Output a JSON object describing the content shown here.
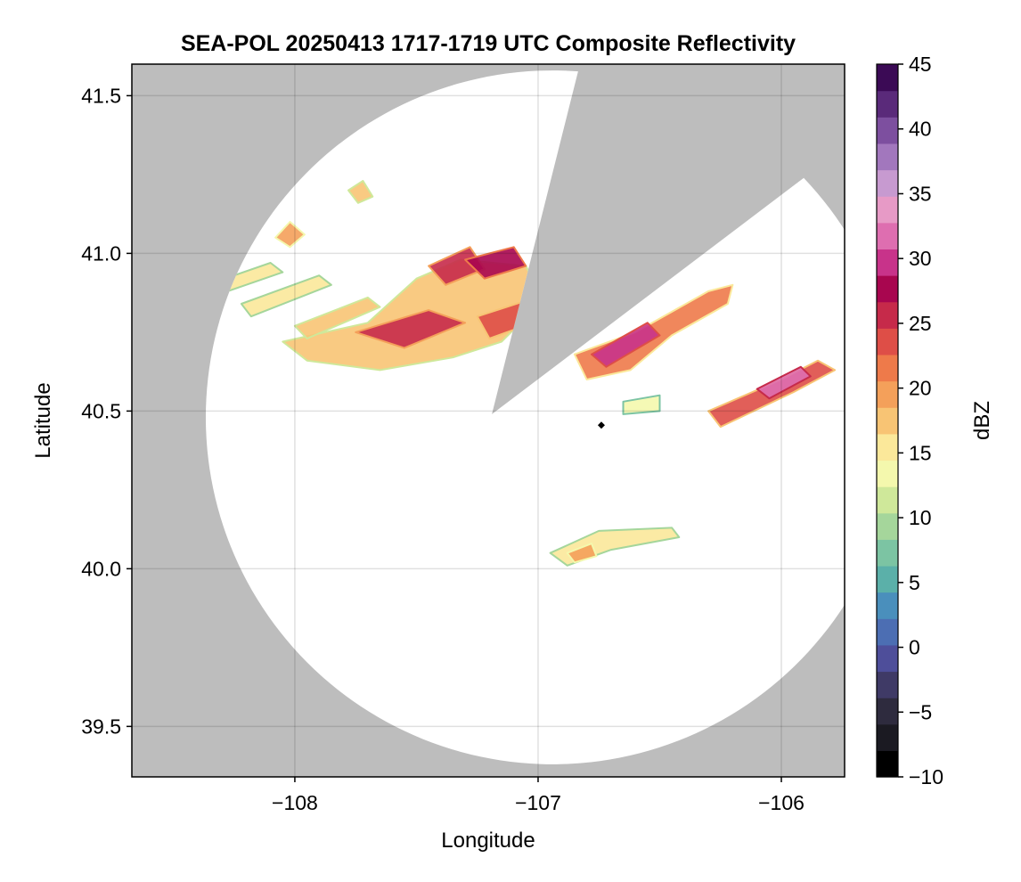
{
  "chart_data": {
    "type": "heatmap",
    "title": "SEA-POL 20250413 1717-1719 UTC Composite Reflectivity",
    "xlabel": "Longitude",
    "ylabel": "Latitude",
    "xlim": [
      -108.67,
      -105.74
    ],
    "ylim": [
      39.34,
      41.6
    ],
    "xticks": [
      -108,
      -107,
      -106
    ],
    "xtick_labels": [
      "−108",
      "−107",
      "−106"
    ],
    "yticks": [
      39.5,
      40.0,
      40.5,
      41.0,
      41.5
    ],
    "ytick_labels": [
      "39.5",
      "40.0",
      "40.5",
      "41.0",
      "41.5"
    ],
    "grid": true,
    "background_color": "#bdbdbd",
    "radar": {
      "site": {
        "lon": -106.74,
        "lat": 40.455
      },
      "coverage_center": {
        "lon": -106.94,
        "lat": 40.48
      },
      "coverage_radius_deg_lat": 1.1,
      "blocked_sectors": [
        {
          "apex": [
            -107.19,
            40.49
          ],
          "edge_points": [
            [
              -106.84,
              41.53
            ],
            [
              -107.19,
              40.49
            ]
          ],
          "from": [
            -106.84,
            41.53
          ],
          "to": [
            -106.07,
            41.12
          ]
        }
      ]
    },
    "colorbar": {
      "label": "dBZ",
      "min": -10,
      "max": 45,
      "ticks": [
        -10,
        -5,
        0,
        5,
        10,
        15,
        20,
        25,
        30,
        35,
        40,
        45
      ],
      "tick_labels": [
        "−10",
        "−5",
        "0",
        "5",
        "10",
        "15",
        "20",
        "25",
        "30",
        "35",
        "40",
        "45"
      ],
      "colormap": "Spectral_r + purples",
      "colors": [
        "#000000",
        "#1b1a22",
        "#2e2b3e",
        "#3f3a66",
        "#4e4e9a",
        "#4c6eb3",
        "#4a8fbc",
        "#5bb0a9",
        "#7cc4a3",
        "#a5d69b",
        "#cfe89a",
        "#f4f8ad",
        "#fbe89a",
        "#f8c474",
        "#f4a05a",
        "#ee7a4a",
        "#de4e47",
        "#c62a4a",
        "#a8064f",
        "#c8338a",
        "#de6eb0",
        "#e79ac6",
        "#c79ad0",
        "#a277bd",
        "#7d4f9f",
        "#5a2a7a",
        "#3b0a55"
      ]
    },
    "echo_regions": [
      {
        "name": "northwest-band-main",
        "points": [
          [
            -108.05,
            40.72
          ],
          [
            -107.7,
            40.78
          ],
          [
            -107.5,
            40.92
          ],
          [
            -107.32,
            40.98
          ],
          [
            -107.05,
            40.96
          ],
          [
            -106.98,
            40.85
          ],
          [
            -107.15,
            40.72
          ],
          [
            -107.35,
            40.67
          ],
          [
            -107.65,
            40.63
          ],
          [
            -107.95,
            40.66
          ]
        ],
        "dbz": 18
      },
      {
        "name": "northwest-core-1",
        "points": [
          [
            -107.75,
            40.75
          ],
          [
            -107.45,
            40.82
          ],
          [
            -107.3,
            40.78
          ],
          [
            -107.55,
            40.7
          ]
        ],
        "dbz": 26
      },
      {
        "name": "northwest-core-2",
        "points": [
          [
            -107.25,
            40.8
          ],
          [
            -107.05,
            40.85
          ],
          [
            -107.02,
            40.78
          ],
          [
            -107.2,
            40.73
          ]
        ],
        "dbz": 24
      },
      {
        "name": "northwest-core-3",
        "points": [
          [
            -107.45,
            40.96
          ],
          [
            -107.28,
            41.02
          ],
          [
            -107.22,
            40.95
          ],
          [
            -107.38,
            40.9
          ]
        ],
        "dbz": 25
      },
      {
        "name": "northwest-core-4",
        "points": [
          [
            -107.3,
            40.98
          ],
          [
            -107.1,
            41.02
          ],
          [
            -107.05,
            40.96
          ],
          [
            -107.22,
            40.92
          ]
        ],
        "dbz": 27
      },
      {
        "name": "west-streak-1",
        "points": [
          [
            -108.4,
            40.89
          ],
          [
            -108.1,
            40.97
          ],
          [
            -108.05,
            40.94
          ],
          [
            -108.35,
            40.86
          ]
        ],
        "dbz": 16
      },
      {
        "name": "west-streak-2",
        "points": [
          [
            -108.22,
            40.84
          ],
          [
            -107.9,
            40.93
          ],
          [
            -107.85,
            40.9
          ],
          [
            -108.18,
            40.8
          ]
        ],
        "dbz": 15
      },
      {
        "name": "west-streak-3",
        "points": [
          [
            -108.0,
            40.77
          ],
          [
            -107.7,
            40.86
          ],
          [
            -107.65,
            40.83
          ],
          [
            -107.95,
            40.73
          ]
        ],
        "dbz": 17
      },
      {
        "name": "northwest-cells",
        "points": [
          [
            -108.08,
            41.05
          ],
          [
            -108.02,
            41.1
          ],
          [
            -107.96,
            41.06
          ],
          [
            -108.02,
            41.02
          ]
        ],
        "dbz": 19
      },
      {
        "name": "northwest-cells-2",
        "points": [
          [
            -107.78,
            41.2
          ],
          [
            -107.72,
            41.23
          ],
          [
            -107.68,
            41.18
          ],
          [
            -107.74,
            41.16
          ]
        ],
        "dbz": 17
      },
      {
        "name": "east-band-north",
        "points": [
          [
            -106.85,
            40.68
          ],
          [
            -106.6,
            40.75
          ],
          [
            -106.3,
            40.88
          ],
          [
            -106.2,
            40.9
          ],
          [
            -106.22,
            40.84
          ],
          [
            -106.45,
            40.74
          ],
          [
            -106.62,
            40.63
          ],
          [
            -106.8,
            40.6
          ]
        ],
        "dbz": 22
      },
      {
        "name": "east-band-north-core",
        "points": [
          [
            -106.78,
            40.68
          ],
          [
            -106.55,
            40.78
          ],
          [
            -106.5,
            40.74
          ],
          [
            -106.72,
            40.64
          ]
        ],
        "dbz": 30
      },
      {
        "name": "east-streak-south",
        "points": [
          [
            -106.3,
            40.5
          ],
          [
            -106.0,
            40.6
          ],
          [
            -105.85,
            40.66
          ],
          [
            -105.78,
            40.63
          ],
          [
            -105.95,
            40.56
          ],
          [
            -106.25,
            40.45
          ]
        ],
        "dbz": 24
      },
      {
        "name": "east-streak-south-core",
        "points": [
          [
            -106.1,
            40.57
          ],
          [
            -105.92,
            40.64
          ],
          [
            -105.88,
            40.61
          ],
          [
            -106.05,
            40.54
          ]
        ],
        "dbz": 31
      },
      {
        "name": "east-small-cells",
        "points": [
          [
            -106.65,
            40.53
          ],
          [
            -106.5,
            40.55
          ],
          [
            -106.5,
            40.5
          ],
          [
            -106.65,
            40.49
          ]
        ],
        "dbz": 14
      },
      {
        "name": "south-band",
        "points": [
          [
            -106.95,
            40.05
          ],
          [
            -106.75,
            40.12
          ],
          [
            -106.45,
            40.13
          ],
          [
            -106.42,
            40.1
          ],
          [
            -106.7,
            40.06
          ],
          [
            -106.88,
            40.01
          ]
        ],
        "dbz": 15
      },
      {
        "name": "south-core",
        "points": [
          [
            -106.88,
            40.05
          ],
          [
            -106.78,
            40.08
          ],
          [
            -106.76,
            40.04
          ],
          [
            -106.85,
            40.02
          ]
        ],
        "dbz": 19
      }
    ]
  }
}
